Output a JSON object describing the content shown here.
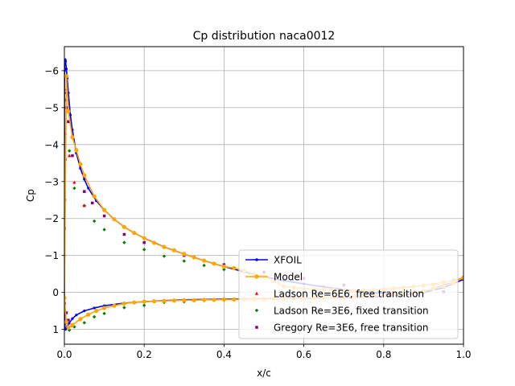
{
  "chart_data": {
    "type": "line",
    "title": "Cp distribution naca0012",
    "xlabel": "x/c",
    "ylabel": "Cp",
    "xlim": [
      0,
      1
    ],
    "ylim": [
      1.4,
      -6.65
    ],
    "y_inverted": true,
    "grid": true,
    "legend_position": "lower-right",
    "xticks": [
      "0.0",
      "0.2",
      "0.4",
      "0.6",
      "0.8",
      "1.0"
    ],
    "xtick_values": [
      0,
      0.2,
      0.4,
      0.6,
      0.8,
      1.0
    ],
    "yticks": [
      "−6",
      "−5",
      "−4",
      "−3",
      "−2",
      "−1",
      "0",
      "1"
    ],
    "ytick_values": [
      -6,
      -5,
      -4,
      -3,
      -2,
      -1,
      0,
      1
    ],
    "series": [
      {
        "name": "XFOIL",
        "kind": "line",
        "color": "#0000ff",
        "marker": "dot",
        "x": [
          1.0,
          0.95,
          0.9,
          0.85,
          0.8,
          0.75,
          0.7,
          0.65,
          0.6,
          0.55,
          0.5,
          0.45,
          0.4,
          0.35,
          0.3,
          0.25,
          0.2,
          0.175,
          0.15,
          0.125,
          0.1,
          0.08,
          0.06,
          0.05,
          0.04,
          0.03,
          0.02,
          0.015,
          0.01,
          0.007,
          0.005,
          0.003,
          0.002,
          0.001,
          0.0005,
          0.0002,
          0.0,
          0.0002,
          0.0005,
          0.001,
          0.002,
          0.003,
          0.005,
          0.008,
          0.012,
          0.02,
          0.03,
          0.05,
          0.075,
          0.1,
          0.15,
          0.2,
          0.25,
          0.3,
          0.4,
          0.5,
          0.6,
          0.7,
          0.8,
          0.9,
          0.95,
          1.0
        ],
        "y": [
          -0.35,
          -0.19,
          -0.02,
          0.07,
          0.03,
          -0.02,
          -0.08,
          -0.15,
          -0.23,
          -0.32,
          -0.43,
          -0.56,
          -0.7,
          -0.86,
          -1.04,
          -1.23,
          -1.47,
          -1.61,
          -1.77,
          -1.98,
          -2.23,
          -2.48,
          -2.82,
          -3.06,
          -3.36,
          -3.77,
          -4.4,
          -4.8,
          -5.4,
          -5.8,
          -6.05,
          -6.25,
          -6.3,
          -6.25,
          -6.0,
          -5.4,
          -1.0,
          0.3,
          0.6,
          0.85,
          0.98,
          1.0,
          0.97,
          0.91,
          0.83,
          0.71,
          0.61,
          0.5,
          0.42,
          0.36,
          0.29,
          0.25,
          0.22,
          0.2,
          0.18,
          0.17,
          0.16,
          0.14,
          0.11,
          0.0,
          -0.13,
          -0.35
        ]
      },
      {
        "name": "Model",
        "kind": "line",
        "color": "#ffa500",
        "marker": "circle",
        "x": [
          1.0,
          0.975,
          0.95,
          0.925,
          0.9,
          0.875,
          0.85,
          0.825,
          0.8,
          0.775,
          0.75,
          0.725,
          0.7,
          0.675,
          0.65,
          0.625,
          0.6,
          0.575,
          0.55,
          0.525,
          0.5,
          0.475,
          0.45,
          0.425,
          0.4,
          0.375,
          0.35,
          0.325,
          0.3,
          0.275,
          0.25,
          0.225,
          0.2,
          0.175,
          0.15,
          0.125,
          0.1,
          0.075,
          0.05,
          0.04,
          0.03,
          0.02,
          0.01,
          0.005,
          0.0,
          0.005,
          0.01,
          0.02,
          0.04,
          0.06,
          0.08,
          0.1,
          0.125,
          0.15,
          0.175,
          0.2,
          0.225,
          0.25,
          0.275,
          0.3,
          0.325,
          0.35,
          0.375,
          0.4,
          0.425,
          0.45,
          0.475,
          0.5,
          0.525,
          0.55,
          0.575,
          0.6,
          0.625,
          0.65,
          0.675,
          0.7,
          0.725,
          0.75,
          0.775,
          0.8,
          0.825,
          0.85,
          0.875,
          0.9,
          0.925,
          0.95,
          0.975,
          1.0
        ],
        "y": [
          -0.4,
          -0.33,
          -0.27,
          -0.22,
          -0.19,
          -0.16,
          -0.13,
          -0.11,
          -0.09,
          -0.06,
          -0.06,
          -0.05,
          -0.06,
          -0.07,
          -0.08,
          -0.09,
          -0.11,
          -0.13,
          -0.16,
          -0.3,
          -0.43,
          -0.5,
          -0.59,
          -0.66,
          -0.7,
          -0.78,
          -0.86,
          -0.95,
          -1.04,
          -1.14,
          -1.23,
          -1.34,
          -1.47,
          -1.61,
          -1.77,
          -1.98,
          -2.23,
          -2.6,
          -3.17,
          -3.47,
          -3.85,
          -4.2,
          -4.9,
          -5.85,
          0.15,
          0.8,
          0.95,
          0.88,
          0.72,
          0.6,
          0.5,
          0.42,
          0.36,
          0.3,
          0.27,
          0.25,
          0.24,
          0.23,
          0.22,
          0.21,
          0.21,
          0.2,
          0.2,
          0.19,
          0.19,
          0.18,
          0.18,
          0.18,
          0.17,
          0.17,
          0.17,
          0.16,
          0.16,
          0.15,
          0.14,
          0.13,
          0.12,
          0.11,
          0.1,
          0.08,
          0.06,
          0.04,
          0.01,
          -0.04,
          -0.1,
          -0.17,
          -0.26,
          -0.4
        ]
      },
      {
        "name": "Ladson Re=6E6, free transition",
        "kind": "scatter",
        "color": "#ff0000",
        "marker": "triangle",
        "x": [
          0.0,
          0.002,
          0.005,
          0.0125,
          0.025,
          0.05
        ],
        "y": [
          -2.82,
          -4.3,
          -5.5,
          -3.7,
          -2.98,
          -2.35
        ]
      },
      {
        "name": "Ladson Re=3E6, fixed transition",
        "kind": "scatter",
        "color": "#008000",
        "marker": "diamond",
        "x": [
          0.0,
          0.003,
          0.0125,
          0.025,
          0.05,
          0.075,
          0.1,
          0.15,
          0.2,
          0.25,
          0.3,
          0.35,
          0.4,
          0.0125,
          0.025,
          0.05,
          0.075,
          0.1,
          0.15,
          0.2,
          0.25,
          0.3,
          0.35,
          0.4
        ],
        "y": [
          -3.6,
          -5.2,
          -3.83,
          -2.82,
          -2.35,
          -1.93,
          -1.7,
          -1.35,
          -1.16,
          -0.98,
          -0.85,
          -0.73,
          -0.62,
          1.02,
          0.93,
          0.82,
          0.66,
          0.57,
          0.41,
          0.35,
          0.27,
          0.25,
          0.22,
          0.21
        ]
      },
      {
        "name": "Gregory Re=3E6, free transition",
        "kind": "scatter",
        "color": "#800080",
        "marker": "square",
        "x": [
          0.0,
          0.001,
          0.002,
          0.005,
          0.01,
          0.02,
          0.05,
          0.07,
          0.1,
          0.15,
          0.2,
          0.3,
          0.4,
          0.5,
          0.6,
          0.7,
          0.8,
          0.9,
          0.95,
          0.0,
          0.005,
          0.01,
          0.02
        ],
        "y": [
          -1.73,
          -2.5,
          -3.6,
          -5.0,
          -4.62,
          -3.7,
          -2.73,
          -2.42,
          -2.07,
          -1.57,
          -1.35,
          -1.0,
          -0.75,
          -0.55,
          -0.38,
          -0.2,
          -0.1,
          -0.05,
          -0.02,
          0.3,
          0.55,
          0.75,
          0.9
        ]
      }
    ]
  }
}
